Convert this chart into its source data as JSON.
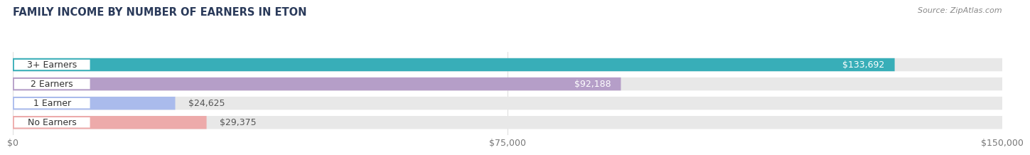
{
  "title": "FAMILY INCOME BY NUMBER OF EARNERS IN ETON",
  "source": "Source: ZipAtlas.com",
  "categories": [
    "No Earners",
    "1 Earner",
    "2 Earners",
    "3+ Earners"
  ],
  "values": [
    29375,
    24625,
    92188,
    133692
  ],
  "value_labels": [
    "$29,375",
    "$24,625",
    "$92,188",
    "$133,692"
  ],
  "bar_colors": [
    "#EDAAAA",
    "#AABBEC",
    "#B59EC8",
    "#38AEB8"
  ],
  "label_bg_colors": [
    "#F5D5D5",
    "#C8D5F2",
    "#D0C0DC",
    "#60C8D0"
  ],
  "bar_bg_color": "#E8E8E8",
  "xlim": [
    0,
    150000
  ],
  "xticks": [
    0,
    75000,
    150000
  ],
  "xtick_labels": [
    "$0",
    "$75,000",
    "$150,000"
  ],
  "label_inside_threshold": 55000,
  "background_color": "#FFFFFF",
  "title_fontsize": 10.5,
  "source_fontsize": 8,
  "bar_label_fontsize": 9,
  "category_fontsize": 9,
  "tick_fontsize": 9
}
